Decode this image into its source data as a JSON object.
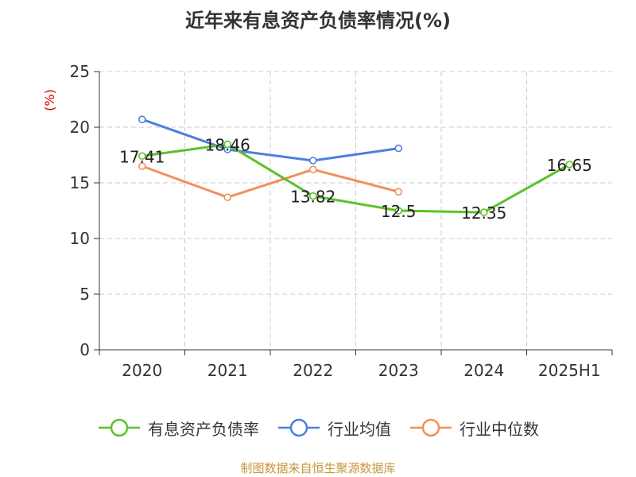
{
  "title": "近年来有息资产负债率情况(%)",
  "source": "制图数据来自恒生聚源数据库",
  "colors": {
    "series_0": "#5cc12b",
    "series_1": "#4e7fdc",
    "series_2": "#f38f5c",
    "ylabel": "#cc0000",
    "grid": "#cccccc",
    "axis": "#333333"
  },
  "chart_data": {
    "type": "line",
    "title": "近年来有息资产负债率情况(%)",
    "ylabel": "(%)",
    "xlabel": "",
    "categories": [
      "2020",
      "2021",
      "2022",
      "2023",
      "2024",
      "2025H1"
    ],
    "ylim": [
      0,
      25
    ],
    "yticks": [
      0,
      5,
      10,
      15,
      20,
      25
    ],
    "grid": true,
    "legend_position": "bottom",
    "series": [
      {
        "name": "有息资产负债率",
        "values": [
          17.41,
          18.46,
          13.82,
          12.5,
          12.35,
          16.65
        ],
        "show_labels": true
      },
      {
        "name": "行业均值",
        "values": [
          20.7,
          18.0,
          17.0,
          18.1,
          null,
          null
        ],
        "show_labels": false
      },
      {
        "name": "行业中位数",
        "values": [
          16.5,
          13.7,
          16.2,
          14.2,
          null,
          null
        ],
        "show_labels": false
      }
    ],
    "data_labels": [
      "17.41",
      "18.46",
      "13.82",
      "12.5",
      "12.35",
      "16.65"
    ]
  }
}
